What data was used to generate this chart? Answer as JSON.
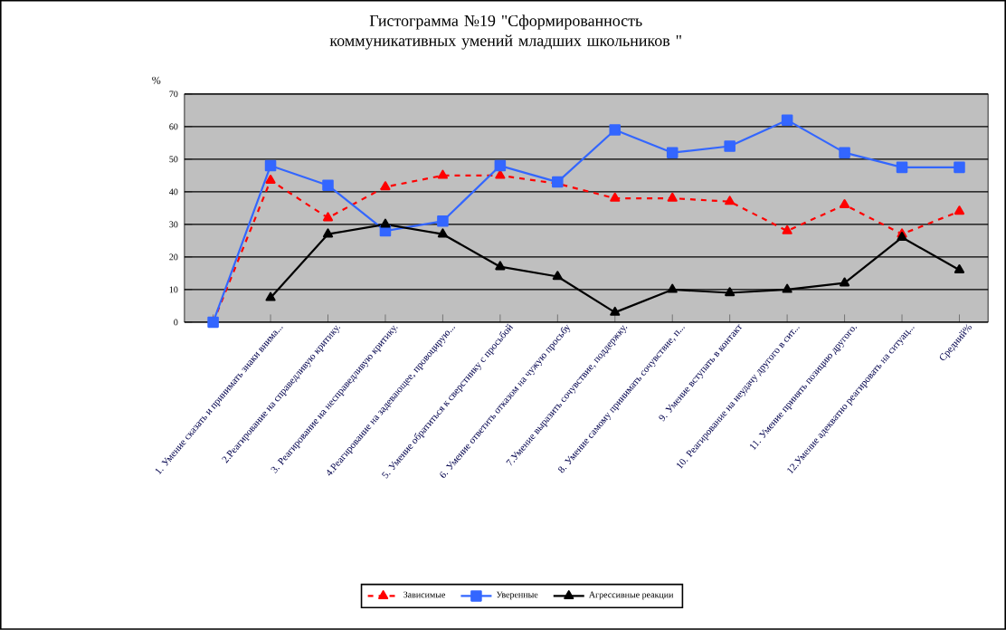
{
  "chart_data": {
    "type": "line",
    "title": "Гистограмма №19 \"Сформированность коммуникативных умений младших школьников \"",
    "ylabel": "%",
    "categories": [
      null,
      "1. Умение сказать и принимать знаки внима...",
      "2.Реагирование на справедливую критику.",
      "3. Реагирование на несправедливую критику.",
      "4.Реагирование на задевающее, провоцирую...",
      "5. Умение обратиться к сверстнику с просьбой",
      "6. Умение ответить отказом на чужую просьбу",
      "7.Умение выразить сочувствие, поддержку.",
      "8. Умение самому принимать сочувствие, п...",
      "9. Умение вступать в контакт",
      "10. Реагирование на неудачу другого в сит...",
      "11. Умение принять позицию другого.",
      "12.Умение адекватно реагировать на ситуац...",
      "Средний%"
    ],
    "series": [
      {
        "name": "Зависимые",
        "color": "#ff0000",
        "marker": "triangle",
        "line_style": "dashed",
        "values": [
          0,
          43.5,
          32,
          41.5,
          45,
          45,
          42.5,
          38,
          38,
          37,
          28,
          36,
          27,
          34
        ]
      },
      {
        "name": "Уверенные",
        "color": "#3366ff",
        "marker": "square",
        "line_style": "solid",
        "values": [
          0,
          48,
          42,
          28,
          31,
          48,
          43,
          59,
          52,
          54,
          62,
          52,
          47.5,
          47.5
        ]
      },
      {
        "name": "Агрессивные реакции",
        "color": "#000000",
        "marker": "triangle",
        "line_style": "solid",
        "values": [
          null,
          7.5,
          27,
          30,
          27,
          17,
          14,
          3,
          10,
          9,
          10,
          12,
          26,
          16
        ]
      }
    ],
    "ylim": [
      0,
      70
    ],
    "yticks": [
      0,
      10,
      20,
      30,
      40,
      50,
      60,
      70
    ],
    "grid": "y",
    "legend": "bottom"
  }
}
